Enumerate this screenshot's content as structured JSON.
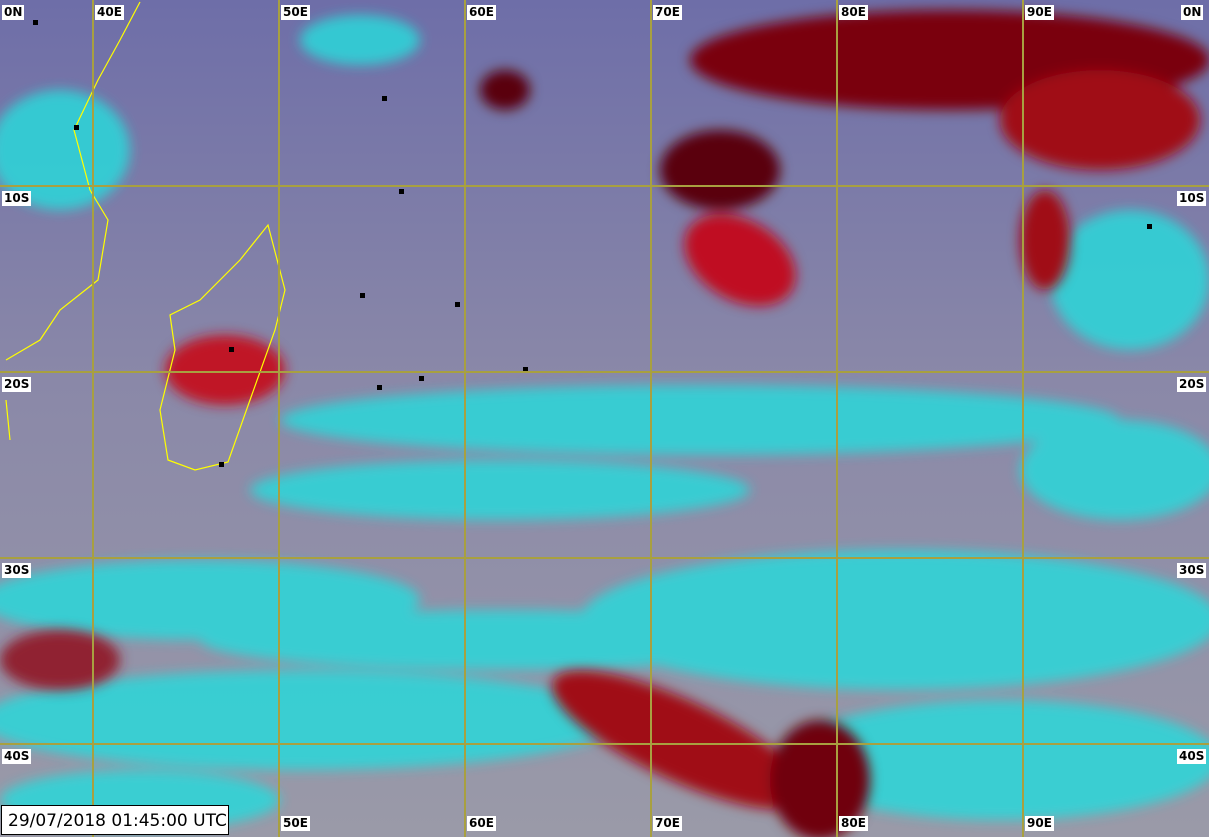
{
  "timestamp": "29/07/2018 01:45:00 UTC",
  "longitude_labels_top": [
    "40E",
    "50E",
    "60E",
    "70E",
    "80E",
    "90E"
  ],
  "longitude_labels_bottom": [
    "50E",
    "60E",
    "70E",
    "80E",
    "90E"
  ],
  "latitude_labels": [
    "0N",
    "10S",
    "20S",
    "30S",
    "40S"
  ],
  "colors": {
    "grid": "#a8a040",
    "coastline": "#ffff00",
    "cold_cloud": "#b00010",
    "low_cloud": "#20e0e0",
    "clear": "#7a7aa6"
  }
}
